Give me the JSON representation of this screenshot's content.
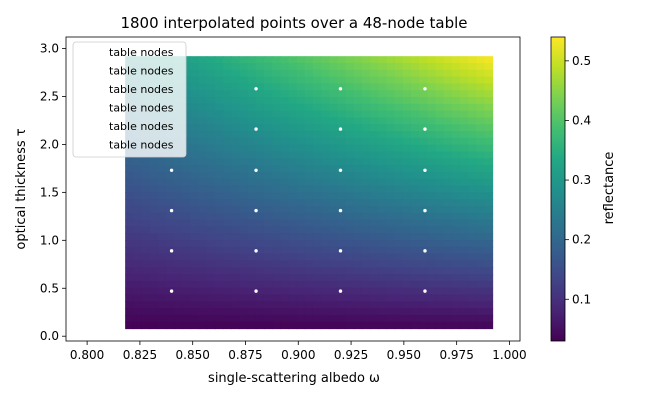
{
  "chart_data": {
    "type": "heatmap",
    "title": "1800 interpolated points over a 48-node table",
    "xlabel": "single-scattering albedo ω",
    "ylabel": "optical thickness τ",
    "xlim": [
      0.79,
      1.005
    ],
    "ylim": [
      -0.05,
      3.12
    ],
    "xticks": [
      0.8,
      0.825,
      0.85,
      0.875,
      0.9,
      0.925,
      0.95,
      0.975,
      1.0
    ],
    "xtick_labels": [
      "0.800",
      "0.825",
      "0.850",
      "0.875",
      "0.900",
      "0.925",
      "0.950",
      "0.975",
      "1.000"
    ],
    "yticks": [
      0.0,
      0.5,
      1.0,
      1.5,
      2.0,
      2.5,
      3.0
    ],
    "ytick_labels": [
      "0.0",
      "0.5",
      "1.0",
      "1.5",
      "2.0",
      "2.5",
      "3.0"
    ],
    "grid": false,
    "heatmap": {
      "x_range": [
        0.818,
        0.992
      ],
      "y_range": [
        0.08,
        2.92
      ],
      "nx": 45,
      "ny": 40,
      "colormap": "viridis",
      "value_at_corners": {
        "x_min_y_min": 0.03,
        "x_max_y_min": 0.035,
        "x_min_y_max": 0.28,
        "x_max_y_max": 0.54
      }
    },
    "nodes": {
      "name": "table nodes",
      "color": "#ffffff",
      "points": [
        {
          "x": 0.84,
          "y": 0.47
        },
        {
          "x": 0.88,
          "y": 0.47
        },
        {
          "x": 0.92,
          "y": 0.47
        },
        {
          "x": 0.96,
          "y": 0.47
        },
        {
          "x": 0.84,
          "y": 0.89
        },
        {
          "x": 0.88,
          "y": 0.89
        },
        {
          "x": 0.92,
          "y": 0.89
        },
        {
          "x": 0.96,
          "y": 0.89
        },
        {
          "x": 0.84,
          "y": 1.31
        },
        {
          "x": 0.88,
          "y": 1.31
        },
        {
          "x": 0.92,
          "y": 1.31
        },
        {
          "x": 0.96,
          "y": 1.31
        },
        {
          "x": 0.84,
          "y": 1.73
        },
        {
          "x": 0.88,
          "y": 1.73
        },
        {
          "x": 0.92,
          "y": 1.73
        },
        {
          "x": 0.96,
          "y": 1.73
        },
        {
          "x": 0.88,
          "y": 2.16
        },
        {
          "x": 0.92,
          "y": 2.16
        },
        {
          "x": 0.96,
          "y": 2.16
        },
        {
          "x": 0.88,
          "y": 2.58
        },
        {
          "x": 0.92,
          "y": 2.58
        },
        {
          "x": 0.96,
          "y": 2.58
        }
      ]
    },
    "legend": {
      "placement": "top-left",
      "entries": [
        "table nodes",
        "table nodes",
        "table nodes",
        "table nodes",
        "table nodes",
        "table nodes"
      ]
    },
    "colorbar": {
      "label": "reflectance",
      "range": [
        0.03,
        0.54
      ],
      "ticks": [
        0.1,
        0.2,
        0.3,
        0.4,
        0.5
      ],
      "tick_labels": [
        "0.1",
        "0.2",
        "0.3",
        "0.4",
        "0.5"
      ]
    }
  }
}
